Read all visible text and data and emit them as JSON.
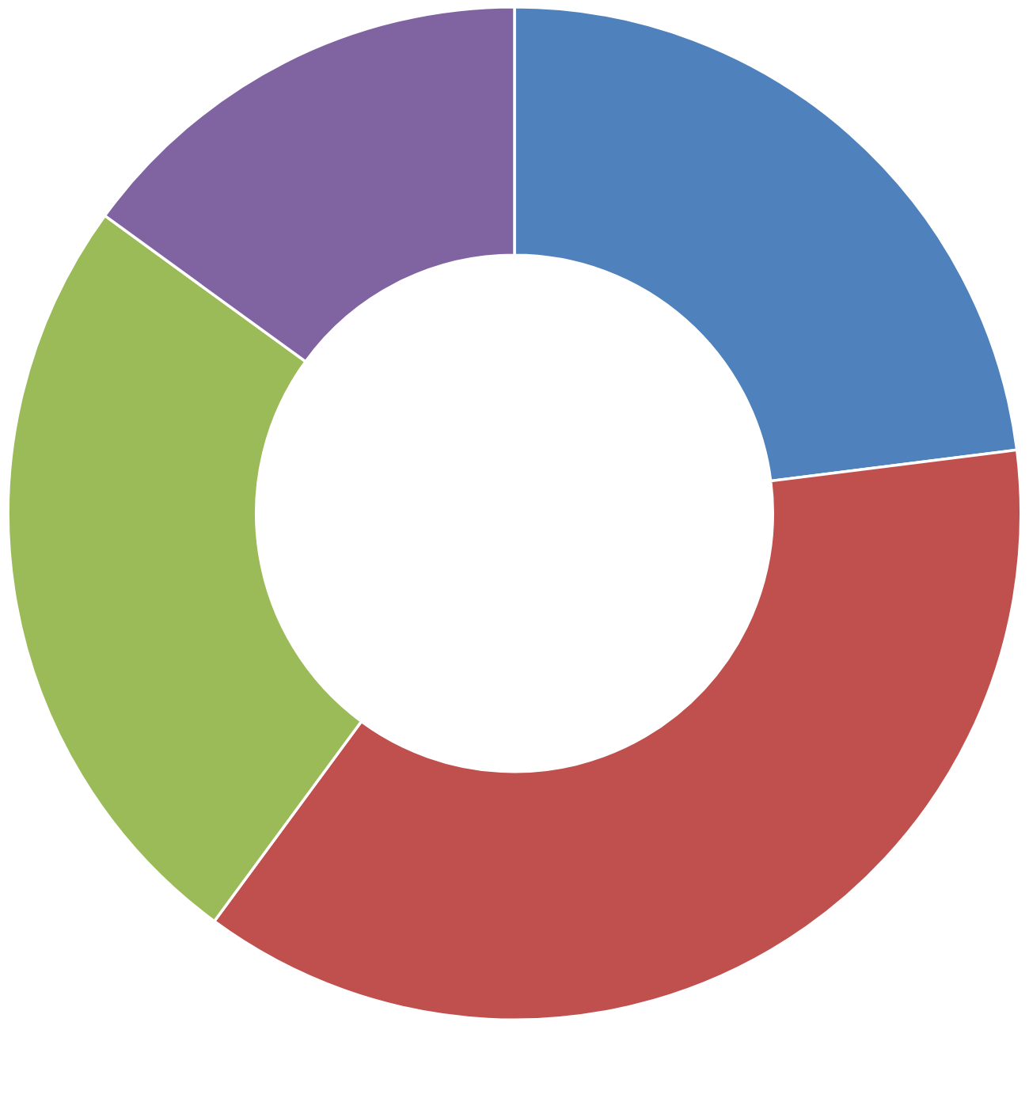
{
  "chart_data": {
    "type": "donut",
    "categories": [
      null,
      null,
      null,
      null
    ],
    "values": [
      23.0,
      37.1,
      24.9,
      15.0
    ],
    "colors": [
      "#4f81bd",
      "#c0504d",
      "#9bbb59",
      "#8064a2"
    ]
  }
}
